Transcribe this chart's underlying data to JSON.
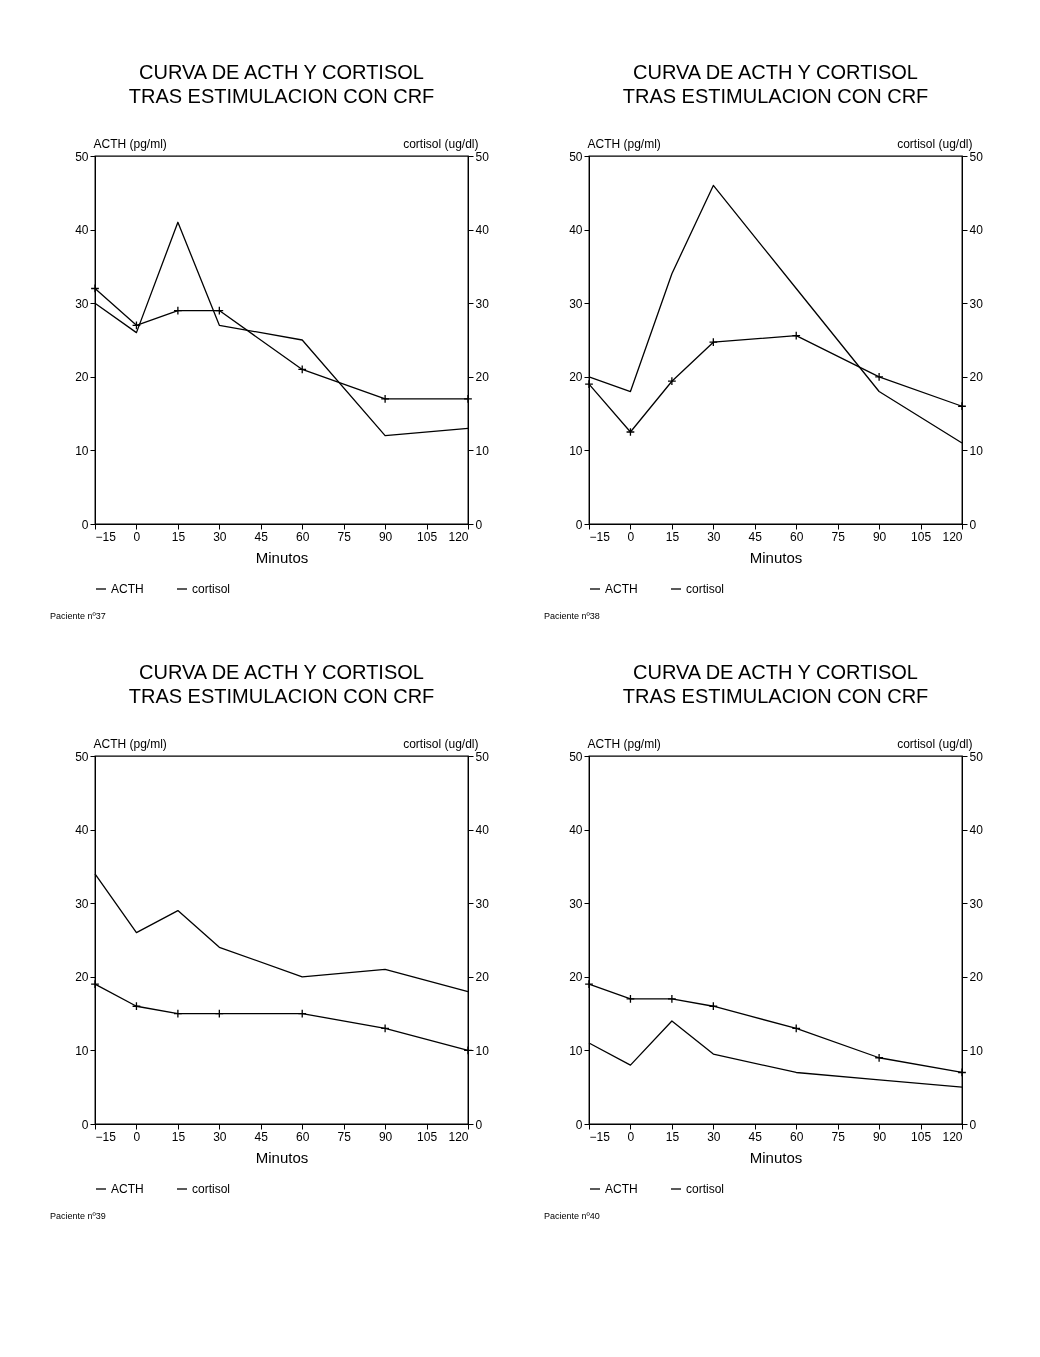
{
  "chart_data": [
    {
      "type": "line",
      "title": "CURVA DE ACTH Y CORTISOL\nTRAS ESTIMULACION CON CRF",
      "xlabel": "Minutos",
      "ylabel": "ACTH (pg/ml)",
      "y2label": "cortisol (ug/dl)",
      "x": [
        -15,
        0,
        15,
        30,
        60,
        90,
        120
      ],
      "xlim": [
        -15,
        120
      ],
      "xticks": [
        -15,
        0,
        15,
        30,
        45,
        60,
        75,
        90,
        105,
        120
      ],
      "ylim": [
        0,
        50
      ],
      "yticks": [
        0,
        10,
        20,
        30,
        40,
        50
      ],
      "y2lim": [
        0,
        50
      ],
      "y2ticks": [
        0,
        10,
        20,
        30,
        40,
        50
      ],
      "legend": "bottom",
      "annotations": [
        "Paciente nº37"
      ],
      "series": [
        {
          "name": "ACTH",
          "color": "#000000",
          "marker": "none",
          "values": [
            30,
            26,
            41,
            27,
            25,
            12,
            13
          ]
        },
        {
          "name": "cortisol",
          "color": "#000000",
          "marker": "cross",
          "axis": "y2",
          "values": [
            32,
            27,
            29,
            29,
            21,
            17,
            17
          ]
        }
      ]
    },
    {
      "type": "line",
      "title": "CURVA DE ACTH Y CORTISOL\nTRAS ESTIMULACION CON CRF",
      "xlabel": "Minutos",
      "ylabel": "ACTH (pg/ml)",
      "y2label": "cortisol (ug/dl)",
      "x": [
        -15,
        0,
        15,
        30,
        60,
        90,
        120
      ],
      "xlim": [
        -15,
        120
      ],
      "xticks": [
        -15,
        0,
        15,
        30,
        45,
        60,
        75,
        90,
        105,
        120
      ],
      "ylim": [
        0,
        50
      ],
      "yticks": [
        0,
        10,
        20,
        30,
        40,
        50
      ],
      "y2lim": [
        0,
        50
      ],
      "y2ticks": [
        0,
        10,
        20,
        30,
        40,
        50
      ],
      "legend": "bottom",
      "annotations": [
        "Paciente nº38"
      ],
      "series": [
        {
          "name": "ACTH",
          "color": "#000000",
          "marker": "none",
          "values": [
            20,
            18,
            34,
            46,
            32,
            18,
            11
          ]
        },
        {
          "name": "cortisol",
          "color": "#000000",
          "marker": "cross",
          "axis": "y2",
          "values": [
            19,
            12.5,
            19.4,
            24.7,
            25.6,
            20,
            16
          ]
        }
      ]
    },
    {
      "type": "line",
      "title": "CURVA DE ACTH Y CORTISOL\nTRAS ESTIMULACION CON CRF",
      "xlabel": "Minutos",
      "ylabel": "ACTH (pg/ml)",
      "y2label": "cortisol (ug/dl)",
      "x": [
        -15,
        0,
        15,
        30,
        60,
        90,
        120
      ],
      "xlim": [
        -15,
        120
      ],
      "xticks": [
        -15,
        0,
        15,
        30,
        45,
        60,
        75,
        90,
        105,
        120
      ],
      "ylim": [
        0,
        50
      ],
      "yticks": [
        0,
        10,
        20,
        30,
        40,
        50
      ],
      "y2lim": [
        0,
        50
      ],
      "y2ticks": [
        0,
        10,
        20,
        30,
        40,
        50
      ],
      "legend": "bottom",
      "annotations": [
        "Paciente nº39"
      ],
      "series": [
        {
          "name": "ACTH",
          "color": "#000000",
          "marker": "none",
          "values": [
            34,
            26,
            29,
            24,
            20,
            21,
            18
          ]
        },
        {
          "name": "cortisol",
          "color": "#000000",
          "marker": "cross",
          "axis": "y2",
          "values": [
            19,
            16,
            15,
            15,
            15,
            13,
            10
          ]
        }
      ]
    },
    {
      "type": "line",
      "title": "CURVA DE ACTH Y CORTISOL\nTRAS ESTIMULACION CON CRF",
      "xlabel": "Minutos",
      "ylabel": "ACTH (pg/ml)",
      "y2label": "cortisol (ug/dl)",
      "x": [
        -15,
        0,
        15,
        30,
        60,
        90,
        120
      ],
      "xlim": [
        -15,
        120
      ],
      "xticks": [
        -15,
        0,
        15,
        30,
        45,
        60,
        75,
        90,
        105,
        120
      ],
      "ylim": [
        0,
        50
      ],
      "yticks": [
        0,
        10,
        20,
        30,
        40,
        50
      ],
      "y2lim": [
        0,
        50
      ],
      "y2ticks": [
        0,
        10,
        20,
        30,
        40,
        50
      ],
      "legend": "bottom",
      "annotations": [
        "Paciente nº40"
      ],
      "series": [
        {
          "name": "ACTH",
          "color": "#000000",
          "marker": "none",
          "values": [
            11,
            8,
            14,
            9.5,
            7,
            6,
            5
          ]
        },
        {
          "name": "cortisol",
          "color": "#000000",
          "marker": "cross",
          "axis": "y2",
          "values": [
            19,
            17,
            17,
            16,
            13,
            9,
            7
          ]
        }
      ]
    }
  ]
}
